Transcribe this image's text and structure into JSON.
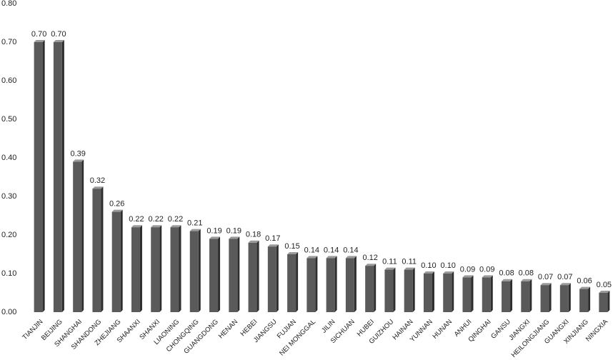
{
  "chart_data": {
    "type": "bar",
    "categories": [
      "TIANJIN",
      "BEIJING",
      "SHANGHAI",
      "SHANDONG",
      "ZHEJIANG",
      "SHAANXI",
      "SHANXI",
      "LIAONING",
      "CHONGQING",
      "GUANGDONG",
      "HENAN",
      "HEBEI",
      "JIANGSU",
      "FUJIAN",
      "NEI MONGGAL",
      "JILIN",
      "SICHUAN",
      "HUBEI",
      "GUIZHOU",
      "HAINAN",
      "YUNNAN",
      "HUNAN",
      "ANHUI",
      "QINGHAI",
      "GANSU",
      "JIANGXI",
      "HEILONGJIANG",
      "GUANGXI",
      "XINJIANG",
      "NINGXIA"
    ],
    "values": [
      0.7,
      0.7,
      0.39,
      0.32,
      0.26,
      0.22,
      0.22,
      0.22,
      0.21,
      0.19,
      0.19,
      0.18,
      0.17,
      0.15,
      0.14,
      0.14,
      0.14,
      0.12,
      0.11,
      0.11,
      0.1,
      0.1,
      0.09,
      0.09,
      0.08,
      0.08,
      0.07,
      0.07,
      0.06,
      0.05
    ],
    "value_labels": [
      "0.70",
      "0.70",
      "0.39",
      "0.32",
      "0.26",
      "0.22",
      "0.22",
      "0.22",
      "0.21",
      "0.19",
      "0.19",
      "0.18",
      "0.17",
      "0.15",
      "0.14",
      "0.14",
      "0.14",
      "0.12",
      "0.11",
      "0.11",
      "0.10",
      "0.10",
      "0.09",
      "0.09",
      "0.08",
      "0.08",
      "0.07",
      "0.07",
      "0.06",
      "0.05"
    ],
    "color": "#5a5a5a",
    "ylim": [
      0,
      0.8
    ],
    "yticks": [
      {
        "value": 0,
        "label": "0.00"
      },
      {
        "value": 0.1,
        "label": "0.10"
      },
      {
        "value": 0.2,
        "label": "0.20"
      },
      {
        "value": 0.3,
        "label": "0.30"
      },
      {
        "value": 0.4,
        "label": "0.40"
      },
      {
        "value": 0.5,
        "label": "0.50"
      },
      {
        "value": 0.6,
        "label": "0.60"
      },
      {
        "value": 0.7,
        "label": "0.70"
      },
      {
        "value": 0.8,
        "label": "0.80"
      }
    ],
    "grid": false
  }
}
